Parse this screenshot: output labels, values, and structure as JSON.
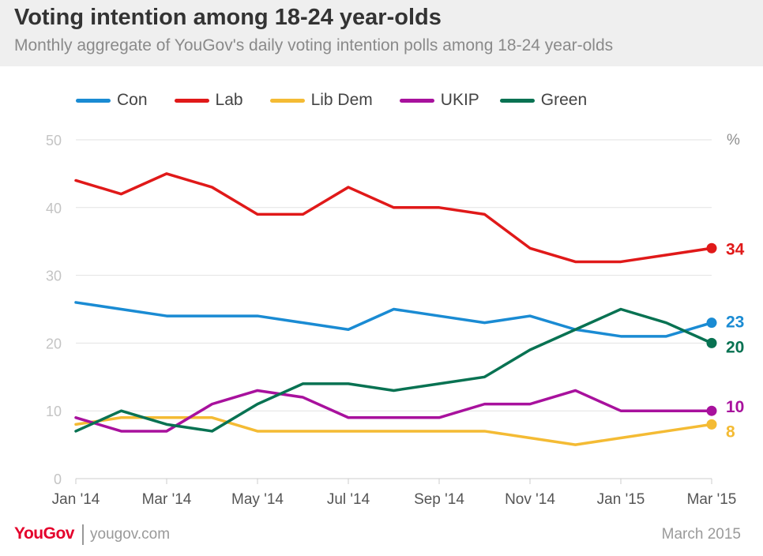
{
  "header": {
    "title": "Voting intention among 18-24 year-olds",
    "subtitle": "Monthly aggregate of YouGov's daily voting intention polls among 18-24 year-olds"
  },
  "footer": {
    "logo": "YouGov",
    "url": "yougov.com",
    "date": "March 2015"
  },
  "chart_data": {
    "type": "line",
    "title": "Voting intention among 18-24 year-olds",
    "subtitle": "Monthly aggregate of YouGov's daily voting intention polls among 18-24 year-olds",
    "xlabel": "",
    "ylabel": "%",
    "ylim": [
      0,
      50
    ],
    "yticks": [
      0,
      10,
      20,
      30,
      40,
      50
    ],
    "grid": true,
    "legend_position": "top-left",
    "x": [
      "Jan '14",
      "Feb '14",
      "Mar '14",
      "Apr '14",
      "May '14",
      "Jun '14",
      "Jul '14",
      "Aug '14",
      "Sep '14",
      "Oct '14",
      "Nov '14",
      "Dec '14",
      "Jan '15",
      "Feb '15",
      "Mar '15"
    ],
    "xtick_labels": [
      "Jan '14",
      "Mar '14",
      "May '14",
      "Jul '14",
      "Sep '14",
      "Nov '14",
      "Jan '15",
      "Mar '15"
    ],
    "series": [
      {
        "name": "Con",
        "color": "#1a8bd3",
        "values": [
          26,
          25,
          24,
          24,
          24,
          23,
          22,
          25,
          24,
          23,
          24,
          22,
          21,
          21,
          23
        ],
        "end_label": "23"
      },
      {
        "name": "Lab",
        "color": "#e01919",
        "values": [
          44,
          42,
          45,
          43,
          39,
          39,
          43,
          40,
          40,
          39,
          34,
          32,
          32,
          33,
          34
        ],
        "end_label": "34"
      },
      {
        "name": "Lib Dem",
        "color": "#f4bb34",
        "values": [
          8,
          9,
          9,
          9,
          7,
          7,
          7,
          7,
          7,
          7,
          6,
          5,
          6,
          7,
          8
        ],
        "end_label": "8"
      },
      {
        "name": "UKIP",
        "color": "#a8119d",
        "values": [
          9,
          7,
          7,
          11,
          13,
          12,
          9,
          9,
          9,
          11,
          11,
          13,
          10,
          10,
          10
        ],
        "end_label": "10"
      },
      {
        "name": "Green",
        "color": "#087252",
        "values": [
          7,
          10,
          8,
          7,
          11,
          14,
          14,
          13,
          14,
          15,
          19,
          22,
          25,
          23,
          20
        ],
        "end_label": "20"
      }
    ]
  }
}
